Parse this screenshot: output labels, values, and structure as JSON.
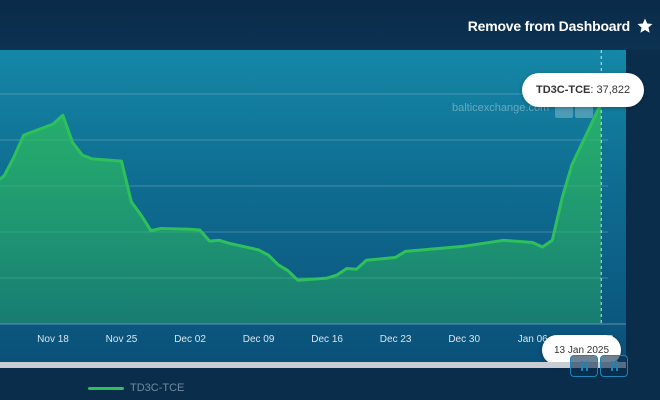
{
  "header": {
    "remove_label": "Remove from Dashboard",
    "star_icon": "star-icon"
  },
  "watermark": {
    "text": "balticexchange.com"
  },
  "tooltip": {
    "series": "TD3C-TCE",
    "value": "37,822"
  },
  "crosshair_date": "13 Jan 2025",
  "legend": {
    "label": "TD3C-TCE",
    "color": "#2ec05a"
  },
  "chart_data": {
    "type": "area",
    "title": "",
    "xlabel": "",
    "ylabel": "",
    "x_ticks": [
      "Nov 18",
      "Nov 25",
      "Dec 02",
      "Dec 09",
      "Dec 16",
      "Dec 23",
      "Dec 30",
      "Jan 06",
      "13"
    ],
    "y_ticks_shown": false,
    "ylim": [
      8000,
      45000
    ],
    "grid": true,
    "series": [
      {
        "name": "TD3C-TCE",
        "color": "#2ec05a",
        "points": [
          [
            "2024-11-12",
            27000
          ],
          [
            "2024-11-13",
            28000
          ],
          [
            "2024-11-14",
            30500
          ],
          [
            "2024-11-15",
            33500
          ],
          [
            "2024-11-18",
            35000
          ],
          [
            "2024-11-19",
            36200
          ],
          [
            "2024-11-20",
            32500
          ],
          [
            "2024-11-21",
            30800
          ],
          [
            "2024-11-22",
            30300
          ],
          [
            "2024-11-25",
            30000
          ],
          [
            "2024-11-26",
            24500
          ],
          [
            "2024-11-27",
            22700
          ],
          [
            "2024-11-28",
            20600
          ],
          [
            "2024-11-29",
            20900
          ],
          [
            "2024-12-02",
            20800
          ],
          [
            "2024-12-03",
            20700
          ],
          [
            "2024-12-04",
            19200
          ],
          [
            "2024-12-05",
            19300
          ],
          [
            "2024-12-06",
            18900
          ],
          [
            "2024-12-09",
            18000
          ],
          [
            "2024-12-10",
            17300
          ],
          [
            "2024-12-11",
            16000
          ],
          [
            "2024-12-12",
            15200
          ],
          [
            "2024-12-13",
            13900
          ],
          [
            "2024-12-16",
            14200
          ],
          [
            "2024-12-17",
            14600
          ],
          [
            "2024-12-18",
            15500
          ],
          [
            "2024-12-19",
            15400
          ],
          [
            "2024-12-20",
            16600
          ],
          [
            "2024-12-23",
            17000
          ],
          [
            "2024-12-24",
            17800
          ],
          [
            "2024-12-30",
            18500
          ],
          [
            "2025-01-02",
            19100
          ],
          [
            "2025-01-03",
            19300
          ],
          [
            "2025-01-06",
            19000
          ],
          [
            "2025-01-07",
            18400
          ],
          [
            "2025-01-08",
            19300
          ],
          [
            "2025-01-09",
            25000
          ],
          [
            "2025-01-10",
            29500
          ],
          [
            "2025-01-13",
            37822
          ]
        ]
      }
    ]
  }
}
